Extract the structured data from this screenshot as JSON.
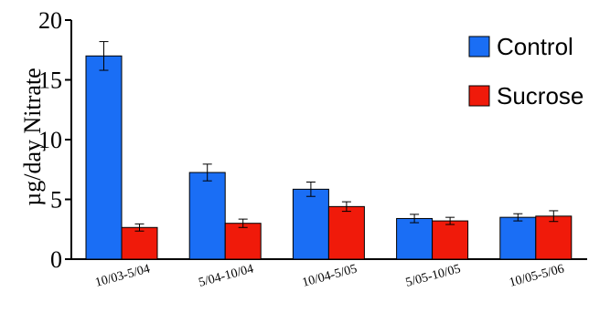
{
  "chart_data": {
    "type": "bar",
    "categories": [
      "10/03-5/04",
      "5/04-10/04",
      "10/04-5/05",
      "5/05-10/05",
      "10/05-5/06"
    ],
    "series": [
      {
        "name": "Control",
        "color": "#1a6ef5",
        "values": [
          17.0,
          7.25,
          5.85,
          3.4,
          3.5
        ],
        "errors": [
          1.2,
          0.7,
          0.6,
          0.35,
          0.3
        ]
      },
      {
        "name": "Sucrose",
        "color": "#f01a0a",
        "values": [
          2.65,
          3.0,
          4.4,
          3.2,
          3.6
        ],
        "errors": [
          0.3,
          0.35,
          0.4,
          0.3,
          0.45
        ]
      }
    ],
    "ylabel": "µg/day Nitrate",
    "xlabel": "",
    "ylim": [
      0,
      20
    ],
    "yticks": [
      "0",
      "5",
      "10",
      "15",
      "20"
    ],
    "legend_position": "top-right",
    "grid": false
  }
}
